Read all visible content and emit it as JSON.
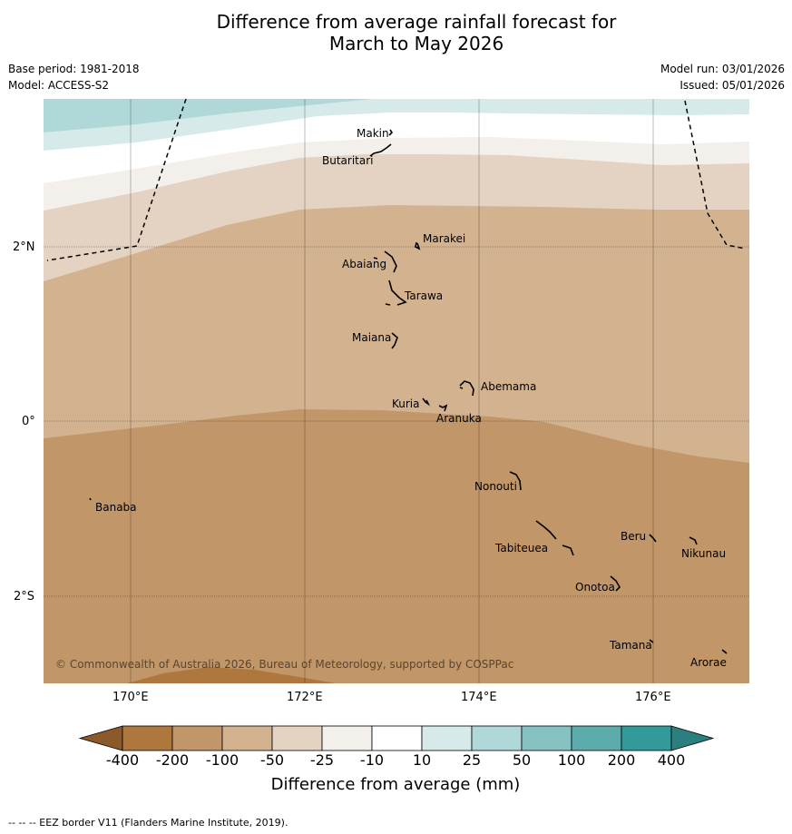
{
  "title_line1": "Difference from average rainfall forecast for",
  "title_line2": "March to May 2026",
  "meta": {
    "base_period": "Base period: 1981-2018",
    "model": "Model: ACCESS-S2",
    "model_run": "Model run: 03/01/2026",
    "issued": "Issued: 05/01/2026"
  },
  "map": {
    "lon_range": [
      169,
      177.1
    ],
    "lat_range": [
      -3,
      3.7
    ],
    "lon_ticks": [
      "170°E",
      "172°E",
      "174°E",
      "176°E"
    ],
    "lat_ticks": [
      "2°N",
      "0°",
      "2°S"
    ],
    "places": [
      {
        "name": "Makin"
      },
      {
        "name": "Butaritari"
      },
      {
        "name": "Marakei"
      },
      {
        "name": "Abaiang"
      },
      {
        "name": "Tarawa"
      },
      {
        "name": "Maiana"
      },
      {
        "name": "Abemama"
      },
      {
        "name": "Kuria"
      },
      {
        "name": "Aranuka"
      },
      {
        "name": "Nonouti"
      },
      {
        "name": "Banaba"
      },
      {
        "name": "Beru"
      },
      {
        "name": "Nikunau"
      },
      {
        "name": "Tabiteuea"
      },
      {
        "name": "Onotoa"
      },
      {
        "name": "Tamana"
      },
      {
        "name": "Arorae"
      }
    ],
    "copyright": "© Commonwealth of Australia 2026, Bureau of Meteorology, supported by COSPPac"
  },
  "colorbar": {
    "title": "Difference from average (mm)",
    "ticks": [
      "-400",
      "-200",
      "-100",
      "-50",
      "-25",
      "-10",
      "10",
      "25",
      "50",
      "100",
      "200",
      "400"
    ],
    "colors": [
      "#8b5a2b",
      "#ae773d",
      "#c19668",
      "#d3b28f",
      "#e4d3c2",
      "#f3efea",
      "#ffffff",
      "#d6eaea",
      "#b0d8d8",
      "#86c2c2",
      "#5cacac",
      "#329a9a",
      "#2b7f7f"
    ]
  },
  "footnote": "--  --  -- EEZ border V11 (Flanders Marine Institute, 2019)."
}
